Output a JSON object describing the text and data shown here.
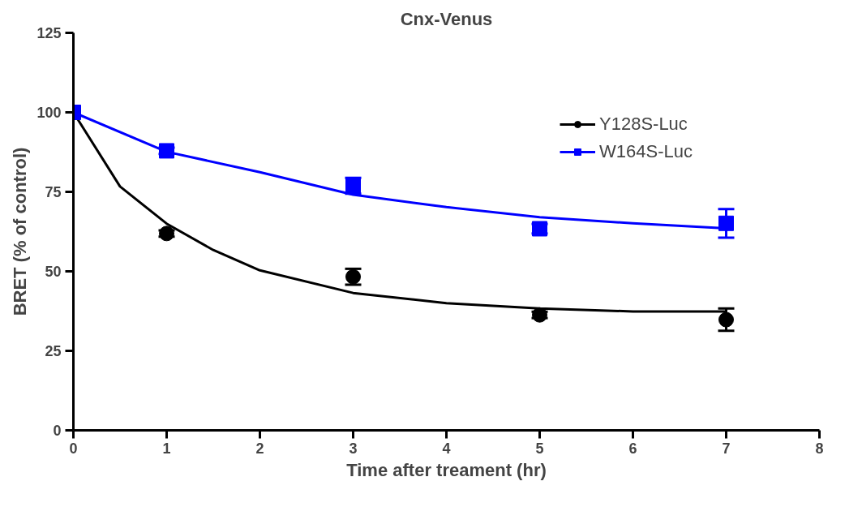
{
  "chart_data": {
    "type": "scatter",
    "title": "Cnx-Venus",
    "xlabel": "Time after treament (hr)",
    "ylabel": "BRET (% of control)",
    "xlim": [
      0,
      8
    ],
    "xticks": [
      0,
      1,
      2,
      3,
      4,
      5,
      6,
      7,
      8
    ],
    "ylim": [
      0,
      125
    ],
    "yticks": [
      0,
      25,
      50,
      75,
      100,
      125
    ],
    "grid": false,
    "legend": "top right",
    "series": [
      {
        "name": "Y128S-Luc",
        "marker": "circle",
        "color": "#000000",
        "x": [
          1,
          3,
          5,
          7
        ],
        "values": [
          61.9,
          48.3,
          36.3,
          34.8
        ],
        "errors": [
          1,
          2.5,
          1,
          3.5
        ]
      },
      {
        "type": "line",
        "marker": "none",
        "color": "#000000",
        "x": [
          0,
          0.5,
          1,
          1.5,
          2,
          3,
          4,
          5,
          6,
          7
        ],
        "values": [
          100,
          76.7,
          65,
          56.7,
          50.3,
          43.2,
          40,
          38.3,
          37.4,
          37.4
        ]
      },
      {
        "name": "W164S-Luc",
        "marker": "square",
        "color": "#0000ff",
        "x": [
          0,
          1,
          3,
          5,
          7
        ],
        "values": [
          100,
          87.9,
          76.9,
          63.4,
          65.1
        ],
        "errors": [
          null,
          1,
          2.5,
          1.5,
          4.5
        ]
      },
      {
        "type": "line",
        "marker": "none",
        "color": "#0000ff",
        "x": [
          0,
          1,
          2,
          3,
          4,
          5,
          6,
          7
        ],
        "values": [
          100,
          87.6,
          81.2,
          74.1,
          70.2,
          67,
          65.1,
          63.5
        ]
      }
    ]
  }
}
